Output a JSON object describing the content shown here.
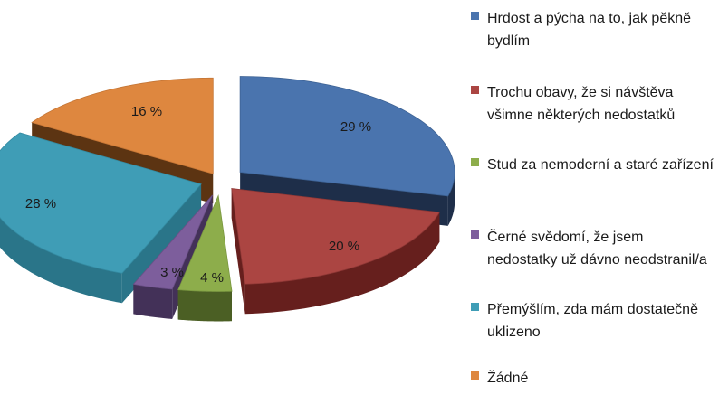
{
  "chart_data": {
    "type": "pie",
    "style": "3d-exploded",
    "legend_position": "right",
    "title": "",
    "series": [
      {
        "label": "Hrdost a pýcha na to, jak pěkně bydlím",
        "value": 29,
        "data_label": "29 %",
        "color": "#4A74AE",
        "side": "#1E2E49",
        "edge": "#3D6294"
      },
      {
        "label": "Trochu obavy, že si návštěva všimne některých nedostatků",
        "value": 20,
        "data_label": "20 %",
        "color": "#AB4542",
        "side": "#661F1D",
        "edge": "#8E3735"
      },
      {
        "label": "Stud za nemoderní a staré zařízení",
        "value": 4,
        "data_label": "4 %",
        "color": "#8DAD4B",
        "side": "#4B5F24",
        "edge": "#7A9740"
      },
      {
        "label": "Černé svědomí, že jsem nedostatky už dávno neodstranil/a",
        "value": 3,
        "data_label": "3 %",
        "color": "#7D5E9C",
        "side": "#433158",
        "edge": "#6A4F86"
      },
      {
        "label": "Přemýšlím, zda mám dostatečně uklizeno",
        "value": 28,
        "data_label": "28 %",
        "color": "#3F9DB6",
        "side": "#2A7589",
        "edge": "#348BA2"
      },
      {
        "label": "Žádné",
        "value": 16,
        "data_label": "16 %",
        "color": "#DE873F",
        "side": "#5C3412",
        "edge": "#C47535"
      }
    ]
  }
}
